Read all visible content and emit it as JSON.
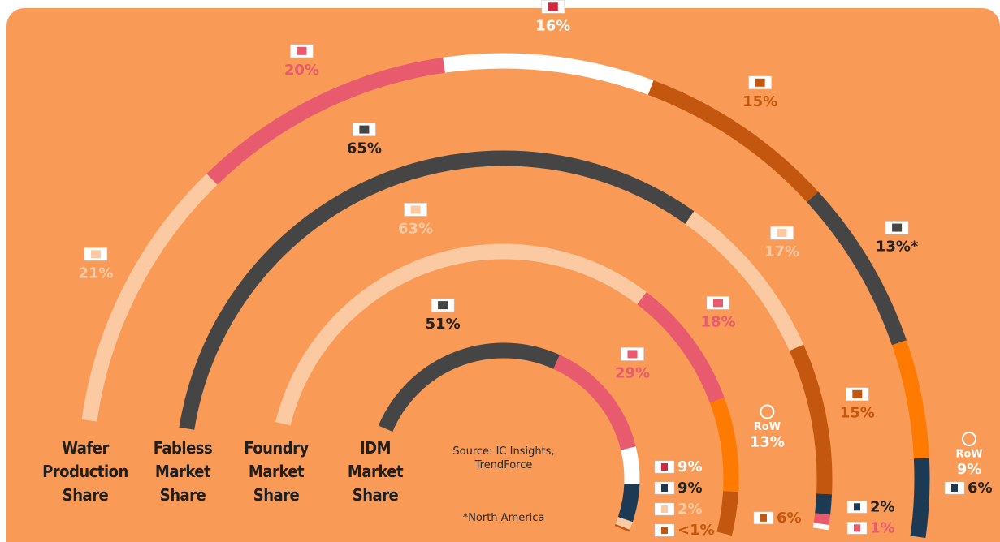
{
  "chart_data": {
    "type": "ring",
    "source": "Source: IC Insights, TrendForce",
    "footnote": "*North America",
    "rings": [
      {
        "name": "Wafer Production Share",
        "values": [
          21,
          20,
          16,
          15,
          13,
          9,
          6
        ],
        "value_labels": [
          "21%",
          "20%",
          "16%",
          "15%",
          "13%*",
          "9%",
          "6%"
        ],
        "categories": [
          null,
          null,
          null,
          null,
          null,
          "RoW",
          null
        ],
        "colors": [
          "#fbcaa2",
          "#e85a6e",
          "#ffffff",
          "#c4570f",
          "#454545",
          "#ff7a00",
          "#1d3a55"
        ]
      },
      {
        "name": "Fabless Market Share",
        "values": [
          65,
          17,
          15,
          2,
          1,
          0.5
        ],
        "value_labels": [
          "65%",
          "17%",
          "15%",
          "2%",
          "1%",
          "<1%"
        ],
        "categories": [
          null,
          null,
          null,
          null,
          null,
          null
        ],
        "colors": [
          "#454545",
          "#fbcaa2",
          "#c4570f",
          "#1d3a55",
          "#e85a6e",
          "#ffffff"
        ]
      },
      {
        "name": "Foundry Market Share",
        "values": [
          63,
          18,
          13,
          6
        ],
        "value_labels": [
          "63%",
          "18%",
          "13%",
          "6%"
        ],
        "categories": [
          null,
          null,
          "RoW",
          null
        ],
        "colors": [
          "#fbcaa2",
          "#e85a6e",
          "#ff7a00",
          "#c4570f"
        ]
      },
      {
        "name": "IDM Market Share",
        "values": [
          51,
          29,
          9,
          9,
          2,
          0.5
        ],
        "value_labels": [
          "51%",
          "29%",
          "9%",
          "9%",
          "2%",
          "<1%"
        ],
        "categories": [
          null,
          null,
          null,
          null,
          null,
          null
        ],
        "colors": [
          "#454545",
          "#e85a6e",
          "#ffffff",
          "#1d3a55",
          "#fbcaa2",
          "#c4570f"
        ]
      }
    ]
  }
}
